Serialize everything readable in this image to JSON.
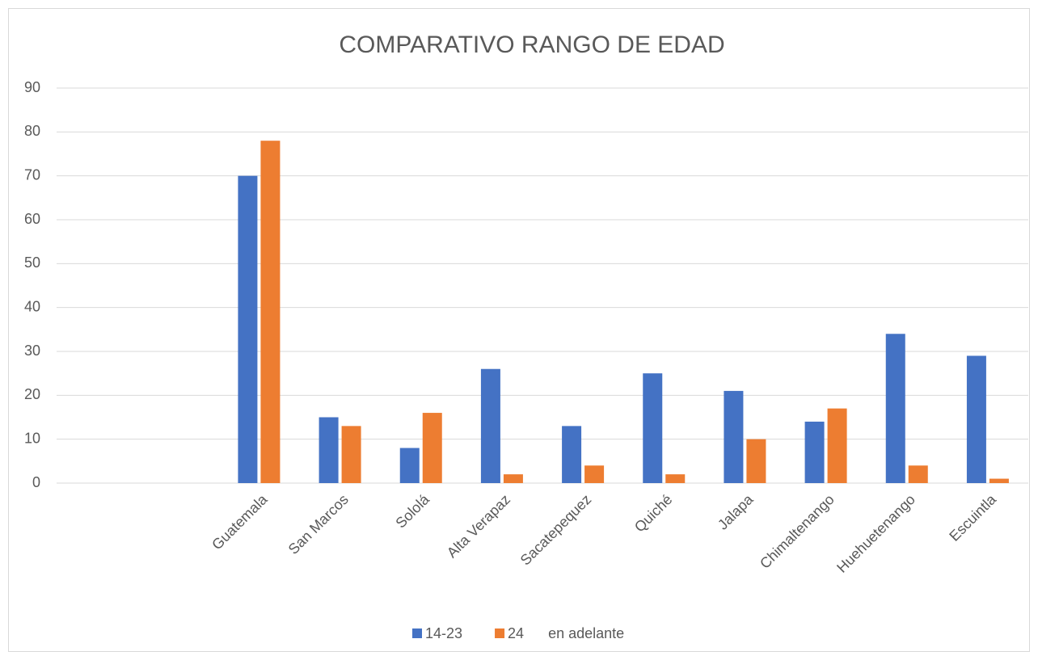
{
  "chart_data": {
    "type": "bar",
    "title": "COMPARATIVO RANGO DE EDAD",
    "categories": [
      null,
      null,
      "Guatemala",
      "San Marcos",
      "Sololá",
      "Alta Verapaz",
      "Sacatepequez",
      "Quiché",
      "Jalapa",
      "Chimaltenango",
      "Huehuetenango",
      "Escuintla"
    ],
    "series": [
      {
        "name": "14-23",
        "color": "#4472c4",
        "values": [
          null,
          null,
          70,
          15,
          8,
          26,
          13,
          25,
          21,
          14,
          34,
          29
        ]
      },
      {
        "name": "24      en adelante",
        "color": "#ed7d31",
        "values": [
          null,
          null,
          78,
          13,
          16,
          2,
          4,
          2,
          10,
          17,
          4,
          1
        ]
      }
    ],
    "ylim": [
      0,
      90
    ],
    "yticks": [
      0,
      10,
      20,
      30,
      40,
      50,
      60,
      70,
      80,
      90
    ],
    "grid": true,
    "legend": "bottom"
  }
}
